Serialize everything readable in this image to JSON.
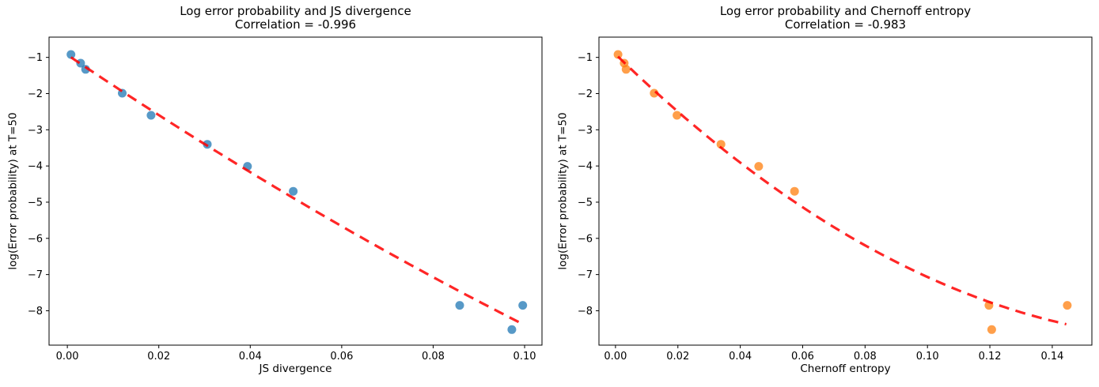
{
  "figure": {
    "background": "#ffffff",
    "text_color": "#000000",
    "spine_color": "#000000"
  },
  "chart_data": [
    {
      "type": "scatter",
      "title": "Log error probability and JS divergence",
      "subtitle": "Correlation = -0.996",
      "correlation": -0.996,
      "xlabel": "JS divergence",
      "ylabel": "log(Error probability) at T=50",
      "x_ticks": [
        0,
        0.02,
        0.04,
        0.06,
        0.08,
        0.1
      ],
      "y_ticks": [
        -1,
        -2,
        -3,
        -4,
        -5,
        -6,
        -7,
        -8
      ],
      "xlim": [
        -0.004,
        0.1038
      ],
      "ylim": [
        -8.95,
        -0.44
      ],
      "grid": false,
      "legend": false,
      "point_color": "#1f77b4",
      "point_opacity": 0.75,
      "points": {
        "x": [
          0.0008,
          0.0029,
          0.004,
          0.012,
          0.0183,
          0.0306,
          0.0394,
          0.0494,
          0.0858,
          0.0972,
          0.0996
        ],
        "y": [
          -0.92,
          -1.16,
          -1.33,
          -1.99,
          -2.6,
          -3.4,
          -4.01,
          -4.7,
          -7.85,
          -8.52,
          -7.85
        ]
      },
      "trend": {
        "style": "dashed",
        "color": "#ff0000",
        "opacity": 0.85,
        "quadratic_coeffs": [
          106.6,
          -85.3,
          -0.93
        ],
        "x_range": [
          0.0008,
          0.0995
        ]
      }
    },
    {
      "type": "scatter",
      "title": "Log error probability and Chernoff entropy",
      "subtitle": "Correlation = -0.983",
      "correlation": -0.983,
      "xlabel": "Chernoff entropy",
      "ylabel": "log(Error probability) at T=50",
      "x_ticks": [
        0,
        0.02,
        0.04,
        0.06,
        0.08,
        0.1,
        0.12,
        0.14
      ],
      "y_ticks": [
        -1,
        -2,
        -3,
        -4,
        -5,
        -6,
        -7,
        -8
      ],
      "xlim": [
        -0.0053,
        0.1527
      ],
      "ylim": [
        -8.95,
        -0.44
      ],
      "grid": false,
      "legend": false,
      "point_color": "#ff7f0e",
      "point_opacity": 0.75,
      "points": {
        "x": [
          0.0008,
          0.0028,
          0.0034,
          0.0124,
          0.0197,
          0.0338,
          0.0459,
          0.0574,
          0.1197,
          0.1206,
          0.1448
        ],
        "y": [
          -0.92,
          -1.16,
          -1.33,
          -1.99,
          -2.6,
          -3.4,
          -4.01,
          -4.7,
          -7.85,
          -8.52,
          -7.85
        ]
      },
      "trend": {
        "style": "dashed",
        "color": "#ff0000",
        "opacity": 0.85,
        "quadratic_coeffs": [
          223.3,
          -83.9,
          -0.91
        ],
        "x_range": [
          0.0008,
          0.1445
        ]
      }
    }
  ]
}
